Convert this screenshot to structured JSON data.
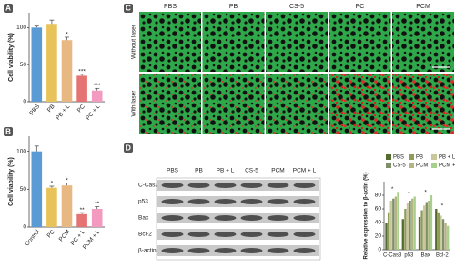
{
  "panels": [
    "A",
    "B",
    "C",
    "D"
  ],
  "chart_data": [
    {
      "type": "bar",
      "ylabel": "Cell viability (%)",
      "categories": [
        "PBS",
        "PB",
        "PB + L",
        "PC",
        "PC + L"
      ],
      "values": [
        100,
        105,
        83,
        35,
        15
      ],
      "errors": [
        2,
        5,
        4,
        2,
        3
      ],
      "colors": [
        "#5b9bd5",
        "#e8c35a",
        "#e8b882",
        "#e57373",
        "#f29ac0"
      ],
      "ylim": [
        0,
        120
      ],
      "yticks": [
        0,
        50,
        100
      ],
      "annotations": [
        {
          "category": "PB + L",
          "text": "*"
        },
        {
          "category": "PC",
          "text": "***"
        },
        {
          "category": "PC + L",
          "text": "***"
        }
      ]
    },
    {
      "type": "bar",
      "ylabel": "Cell viability (%)",
      "categories": [
        "Control",
        "PC",
        "PCM",
        "PC + L",
        "PCM + L"
      ],
      "values": [
        100,
        52,
        55,
        17,
        24
      ],
      "errors": [
        7,
        2,
        3,
        2,
        3
      ],
      "colors": [
        "#5b9bd5",
        "#e8c35a",
        "#e8b882",
        "#e57373",
        "#f29ac0"
      ],
      "ylim": [
        0,
        120
      ],
      "yticks": [
        0,
        50,
        100
      ],
      "annotations": [
        {
          "category": "PC",
          "text": "*"
        },
        {
          "category": "PCM",
          "text": "*"
        },
        {
          "category": "PC + L",
          "text": "**"
        },
        {
          "category": "PCM + L",
          "text": "**"
        }
      ]
    },
    {
      "type": "grouped_bar",
      "ylabel": "Relative expression to β-actin (%)",
      "categories": [
        "C-Cas3",
        "p53",
        "Bax",
        "Bcl-2"
      ],
      "series": [
        {
          "name": "PBS",
          "color": "#556b2f",
          "values": [
            40,
            45,
            48,
            60
          ]
        },
        {
          "name": "PB",
          "color": "#8f9c5a",
          "values": [
            55,
            60,
            58,
            55
          ]
        },
        {
          "name": "PB + L",
          "color": "#c8c89a",
          "values": [
            72,
            68,
            65,
            50
          ]
        },
        {
          "name": "CS-5",
          "color": "#7f8f6a",
          "values": [
            75,
            72,
            70,
            45
          ]
        },
        {
          "name": "PCM",
          "color": "#b5b583",
          "values": [
            78,
            75,
            72,
            40
          ]
        },
        {
          "name": "PCM + L",
          "color": "#a8d08d",
          "values": [
            85,
            78,
            80,
            35
          ]
        }
      ],
      "ylim": [
        0,
        100
      ],
      "yticks": [
        0,
        20,
        40,
        60,
        80
      ],
      "annotations": [
        {
          "category": "C-Cas3",
          "text": "*"
        },
        {
          "category": "p53",
          "text": "*"
        },
        {
          "category": "Bax",
          "text": "*"
        },
        {
          "category": "Bcl-2",
          "text": "*"
        }
      ]
    }
  ],
  "panel_c": {
    "columns": [
      "PBS",
      "PB",
      "CS-5",
      "PC",
      "PCM"
    ],
    "rows": [
      "Without laser",
      "With laser"
    ]
  },
  "panel_d": {
    "columns": [
      "PBS",
      "PB",
      "PB + L",
      "CS-5",
      "PCM",
      "PCM + L"
    ],
    "rows": [
      "C-Cas3",
      "p53",
      "Bax",
      "Bcl-2",
      "β-actin"
    ]
  }
}
